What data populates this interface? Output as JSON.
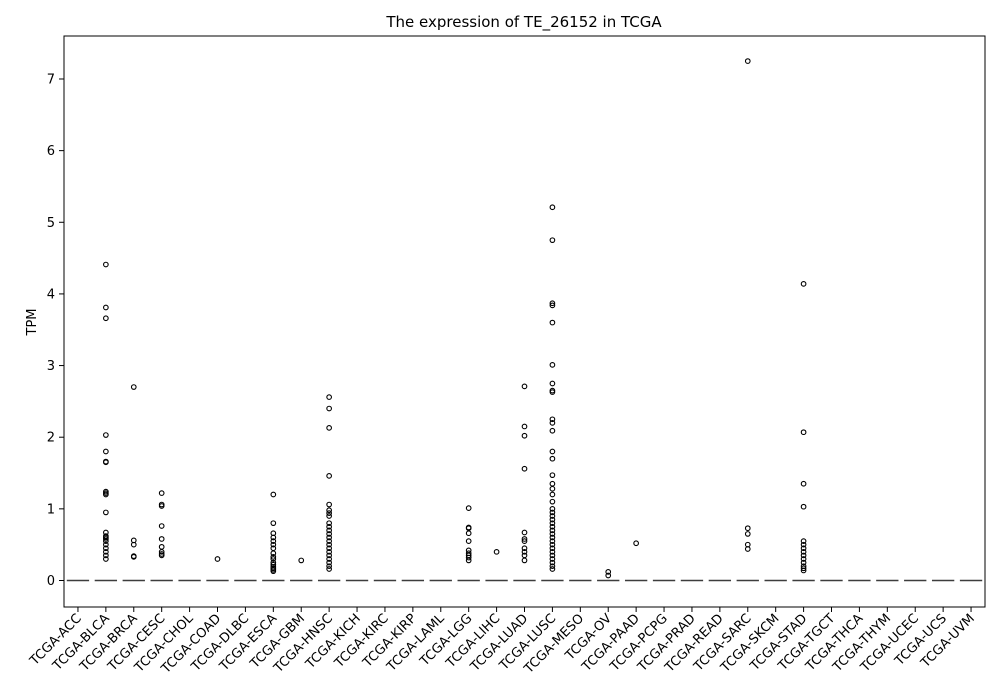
{
  "chart_data": {
    "type": "box",
    "title": "The expression of TE_26152 in TCGA",
    "xlabel": "",
    "ylabel": "TPM",
    "ylim": [
      -0.37,
      7.6
    ],
    "yticks": [
      0,
      1,
      2,
      3,
      4,
      5,
      6,
      7
    ],
    "grid": false,
    "legend": "none",
    "categories": [
      "TCGA-ACC",
      "TCGA-BLCA",
      "TCGA-BRCA",
      "TCGA-CESC",
      "TCGA-CHOL",
      "TCGA-COAD",
      "TCGA-DLBC",
      "TCGA-ESCA",
      "TCGA-GBM",
      "TCGA-HNSC",
      "TCGA-KICH",
      "TCGA-KIRC",
      "TCGA-KIRP",
      "TCGA-LAML",
      "TCGA-LGG",
      "TCGA-LIHC",
      "TCGA-LUAD",
      "TCGA-LUSC",
      "TCGA-MESO",
      "TCGA-OV",
      "TCGA-PAAD",
      "TCGA-PCPG",
      "TCGA-PRAD",
      "TCGA-READ",
      "TCGA-SARC",
      "TCGA-SKCM",
      "TCGA-STAD",
      "TCGA-TGCT",
      "TCGA-THCA",
      "TCGA-THYM",
      "TCGA-UCEC",
      "TCGA-UCS",
      "TCGA-UVM"
    ],
    "median": [
      0,
      0,
      0,
      0,
      0,
      0,
      0,
      0,
      0,
      0,
      0,
      0,
      0,
      0,
      0,
      0,
      0,
      0,
      0,
      0,
      0,
      0,
      0,
      0,
      0,
      0,
      0,
      0,
      0,
      0,
      0,
      0,
      0
    ],
    "outliers": [
      [],
      [
        4.41,
        3.81,
        3.66,
        2.03,
        1.8,
        1.66,
        1.65,
        1.24,
        1.22,
        1.2,
        0.95,
        0.67,
        0.62,
        0.6,
        0.58,
        0.55,
        0.5,
        0.45,
        0.4,
        0.35,
        0.3
      ],
      [
        2.7,
        0.56,
        0.5,
        0.34,
        0.33
      ],
      [
        1.22,
        1.06,
        1.04,
        0.76,
        0.58,
        0.47,
        0.4,
        0.37,
        0.35
      ],
      [],
      [
        0.3
      ],
      [],
      [
        1.2,
        0.8,
        0.66,
        0.6,
        0.55,
        0.5,
        0.45,
        0.38,
        0.33,
        0.3,
        0.25,
        0.22,
        0.19,
        0.17,
        0.15,
        0.13
      ],
      [
        0.28
      ],
      [
        2.56,
        2.4,
        2.13,
        1.46,
        1.06,
        0.98,
        0.94,
        0.9,
        0.8,
        0.75,
        0.7,
        0.65,
        0.6,
        0.55,
        0.5,
        0.45,
        0.4,
        0.35,
        0.3,
        0.25,
        0.2,
        0.16
      ],
      [],
      [],
      [],
      [],
      [
        1.01,
        0.74,
        0.73,
        0.66,
        0.55,
        0.42,
        0.38,
        0.35,
        0.32,
        0.28
      ],
      [
        0.4
      ],
      [
        2.71,
        2.15,
        2.02,
        1.56,
        0.67,
        0.58,
        0.55,
        0.45,
        0.4,
        0.35,
        0.28
      ],
      [
        5.21,
        4.75,
        3.87,
        3.84,
        3.6,
        3.01,
        2.75,
        2.65,
        2.63,
        2.25,
        2.2,
        2.09,
        1.8,
        1.7,
        1.47,
        1.35,
        1.28,
        1.2,
        1.1,
        1.0,
        0.95,
        0.9,
        0.85,
        0.8,
        0.75,
        0.7,
        0.65,
        0.6,
        0.55,
        0.5,
        0.45,
        0.4,
        0.35,
        0.3,
        0.25,
        0.2,
        0.16
      ],
      [],
      [
        0.12,
        0.07
      ],
      [
        0.52
      ],
      [],
      [],
      [],
      [
        7.25,
        0.73,
        0.65,
        0.5,
        0.44
      ],
      [],
      [
        4.14,
        2.07,
        1.35,
        1.03,
        0.55,
        0.5,
        0.45,
        0.4,
        0.35,
        0.3,
        0.25,
        0.2,
        0.17,
        0.14
      ],
      [],
      [],
      [],
      [],
      [],
      []
    ]
  }
}
